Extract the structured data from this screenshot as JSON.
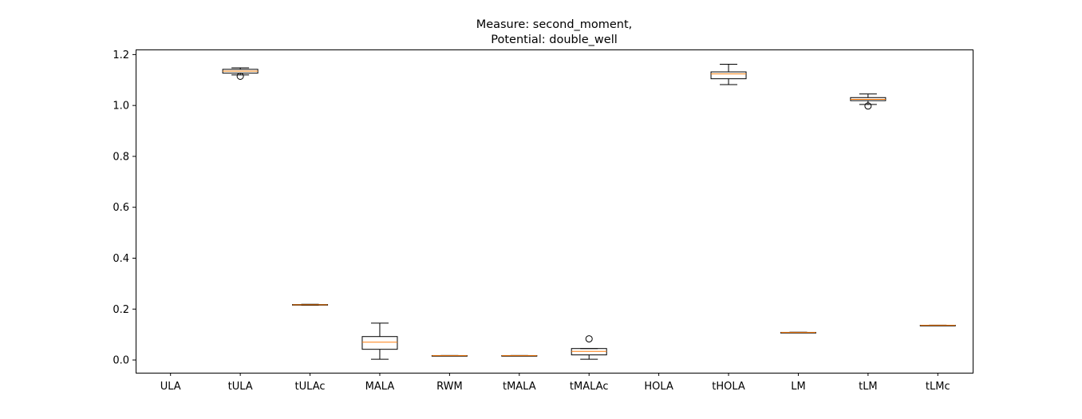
{
  "chart_data": {
    "type": "boxplot",
    "title_line1": "Measure: second_moment,",
    "title_line2": "Potential: double_well",
    "xlabel": "",
    "ylabel": "",
    "ylim": [
      -0.05,
      1.22
    ],
    "yticks": [
      "0.0",
      "0.2",
      "0.4",
      "0.6",
      "0.8",
      "1.0",
      "1.2"
    ],
    "ytick_values": [
      0.0,
      0.2,
      0.4,
      0.6,
      0.8,
      1.0,
      1.2
    ],
    "categories": [
      "ULA",
      "tULA",
      "tULAc",
      "MALA",
      "RWM",
      "tMALA",
      "tMALAc",
      "HOLA",
      "tHOLA",
      "LM",
      "tLM",
      "tLMc"
    ],
    "grid": false,
    "legend": "none",
    "colors": {
      "box": "#000000",
      "median": "#ff7f0e",
      "outlier": "#000000"
    },
    "boxes": [
      null,
      {
        "whislo": 1.12,
        "q1": 1.127,
        "med": 1.135,
        "q3": 1.142,
        "whishi": 1.148,
        "fliers": [
          1.115
        ]
      },
      {
        "whislo": 0.215,
        "q1": 0.216,
        "med": 0.217,
        "q3": 0.218,
        "whishi": 0.219,
        "fliers": []
      },
      {
        "whislo": 0.003,
        "q1": 0.042,
        "med": 0.07,
        "q3": 0.092,
        "whishi": 0.145,
        "fliers": []
      },
      {
        "whislo": 0.016,
        "q1": 0.0165,
        "med": 0.017,
        "q3": 0.0175,
        "whishi": 0.018,
        "fliers": []
      },
      {
        "whislo": 0.016,
        "q1": 0.0165,
        "med": 0.017,
        "q3": 0.0175,
        "whishi": 0.018,
        "fliers": []
      },
      {
        "whislo": 0.003,
        "q1": 0.02,
        "med": 0.034,
        "q3": 0.045,
        "whishi": 0.045,
        "fliers": [
          0.083
        ]
      },
      null,
      {
        "whislo": 1.082,
        "q1": 1.105,
        "med": 1.124,
        "q3": 1.132,
        "whishi": 1.162,
        "fliers": []
      },
      {
        "whislo": 0.107,
        "q1": 0.1075,
        "med": 0.108,
        "q3": 0.1085,
        "whishi": 0.109,
        "fliers": []
      },
      {
        "whislo": 1.004,
        "q1": 1.019,
        "med": 1.024,
        "q3": 1.031,
        "whishi": 1.045,
        "fliers": [
          0.998
        ]
      },
      {
        "whislo": 0.135,
        "q1": 0.1355,
        "med": 0.136,
        "q3": 0.1365,
        "whishi": 0.137,
        "fliers": []
      }
    ]
  }
}
